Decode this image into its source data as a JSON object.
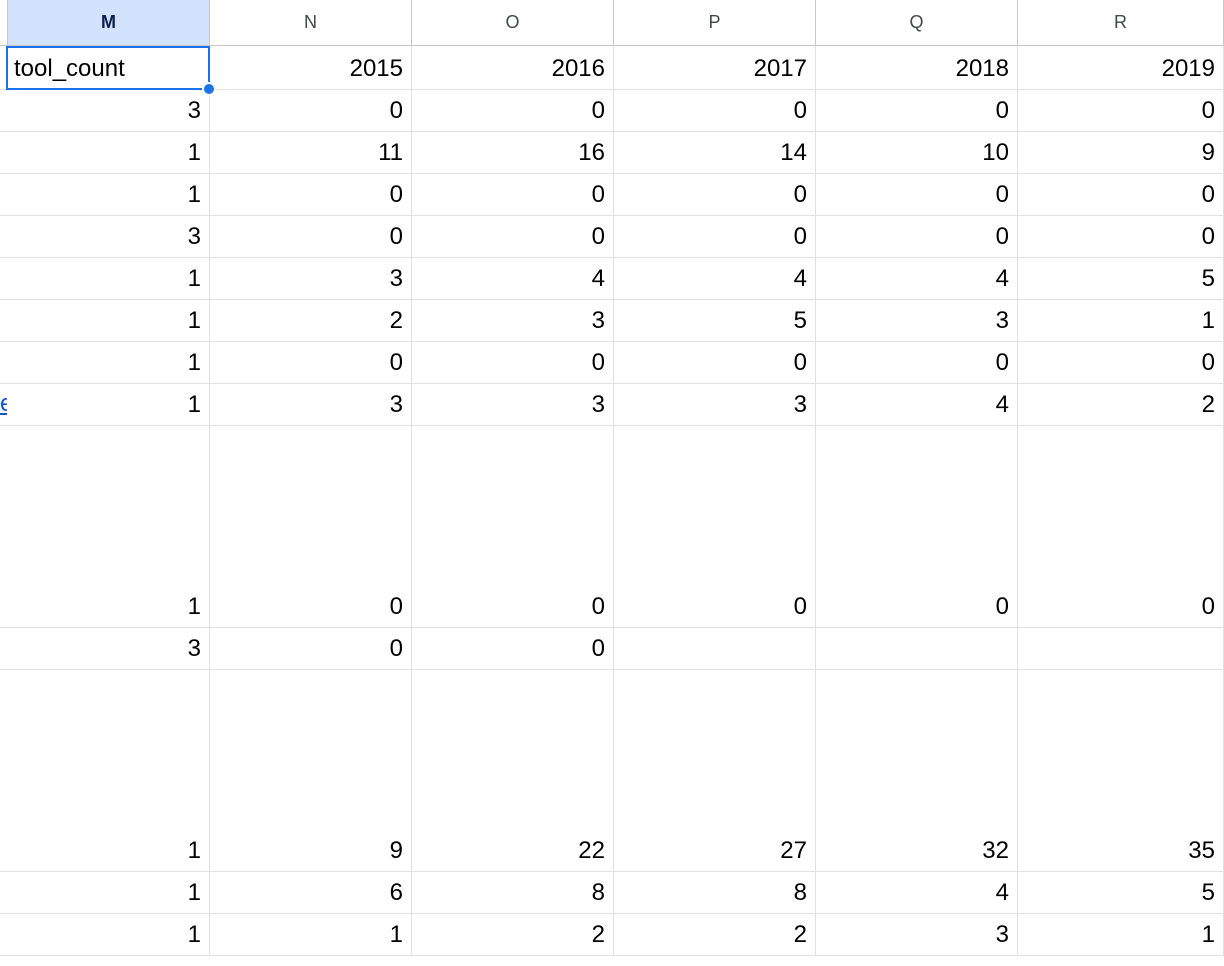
{
  "columns": [
    "M",
    "N",
    "O",
    "P",
    "Q",
    "R"
  ],
  "active_column": "M",
  "header_row": [
    "tool_count",
    "2015",
    "2016",
    "2017",
    "2018",
    "2019"
  ],
  "rows": [
    [
      "3",
      "0",
      "0",
      "0",
      "0",
      "0"
    ],
    [
      "1",
      "11",
      "16",
      "14",
      "10",
      "9"
    ],
    [
      "1",
      "0",
      "0",
      "0",
      "0",
      "0"
    ],
    [
      "3",
      "0",
      "0",
      "0",
      "0",
      "0"
    ],
    [
      "1",
      "3",
      "4",
      "4",
      "4",
      "5"
    ],
    [
      "1",
      "2",
      "3",
      "5",
      "3",
      "1"
    ],
    [
      "1",
      "0",
      "0",
      "0",
      "0",
      "0"
    ],
    [
      "1",
      "3",
      "3",
      "3",
      "4",
      "2"
    ],
    [
      "1",
      "0",
      "0",
      "0",
      "0",
      "0"
    ],
    [
      "3",
      "0",
      "0",
      "",
      "",
      ""
    ],
    [
      "1",
      "9",
      "22",
      "27",
      "32",
      "35"
    ],
    [
      "1",
      "6",
      "8",
      "8",
      "4",
      "5"
    ],
    [
      "1",
      "1",
      "2",
      "2",
      "3",
      "1"
    ]
  ],
  "left_link_fragment": "e",
  "colors": {
    "selection": "#1a73e8",
    "active_header": "#d3e3fd",
    "link": "#1155cc"
  }
}
